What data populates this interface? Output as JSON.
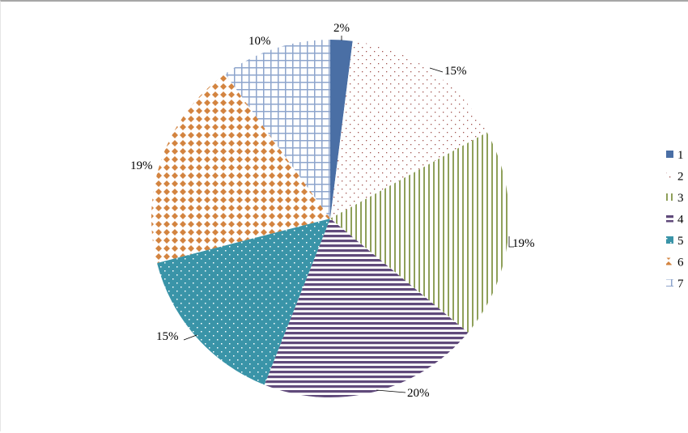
{
  "chart_data": {
    "type": "pie",
    "title": "",
    "categories": [
      "1",
      "2",
      "3",
      "4",
      "5",
      "6",
      "7"
    ],
    "values": [
      2,
      15,
      19,
      20,
      15,
      19,
      10
    ],
    "labels": [
      "2%",
      "15%",
      "19%",
      "20%",
      "15%",
      "19%",
      "10%"
    ],
    "colors": [
      "#4a6fa5",
      "#a0524d",
      "#8fa05a",
      "#604a7b",
      "#3a94a8",
      "#d38440",
      "#8ea5cc"
    ],
    "patterns": [
      "solid",
      "small-dots",
      "vertical-lines",
      "horizontal-lines",
      "dots-on-solid",
      "diamonds",
      "grid"
    ],
    "legend": {
      "position": "right",
      "entries": [
        "1",
        "2",
        "3",
        "4",
        "5",
        "6",
        "7"
      ]
    },
    "start_angle_deg": 0,
    "direction": "clockwise"
  }
}
